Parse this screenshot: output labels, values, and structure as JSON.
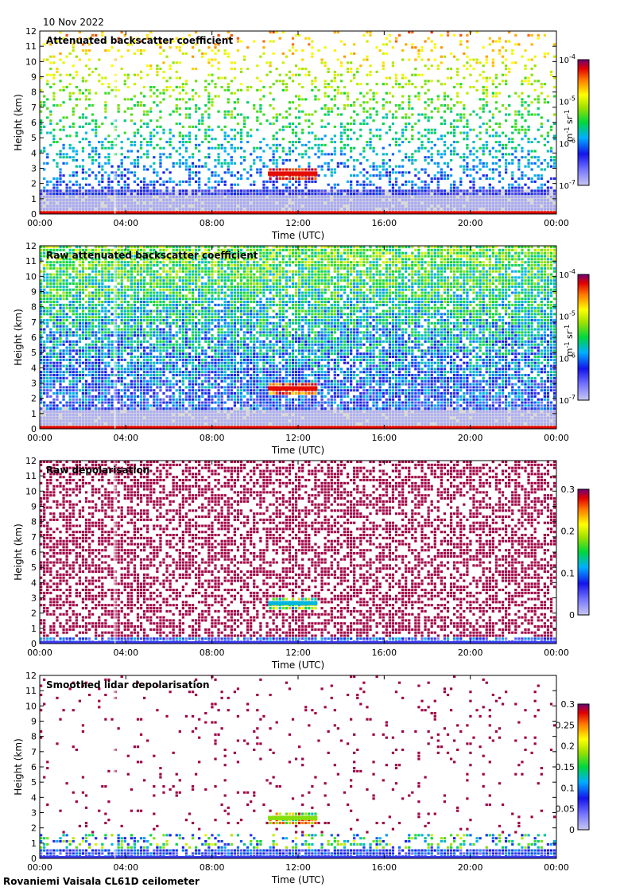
{
  "date": "10 Nov 2022",
  "footer": "Rovaniemi Vaisala CL61D ceilometer",
  "chart_data": [
    {
      "type": "heatmap",
      "title": "Attenuated backscatter coefficient",
      "xlabel": "Time (UTC)",
      "ylabel": "Height (km)",
      "xticks": [
        "00:00",
        "04:00",
        "08:00",
        "12:00",
        "16:00",
        "20:00",
        "00:00"
      ],
      "yticks": [
        "0",
        "1",
        "2",
        "3",
        "4",
        "5",
        "6",
        "7",
        "8",
        "9",
        "10",
        "11",
        "12"
      ],
      "ylim": [
        0,
        12
      ],
      "colorbar": {
        "label_parts": [
          "m",
          "-1",
          " sr",
          "-1"
        ],
        "scale": "log",
        "ticks": [
          {
            "base": "10",
            "exp": "-4",
            "value": 0.0001
          },
          {
            "base": "10",
            "exp": "-5",
            "value": 1e-05
          },
          {
            "base": "10",
            "exp": "-6",
            "value": 1e-06
          },
          {
            "base": "10",
            "exp": "-7",
            "value": 1e-07
          }
        ]
      },
      "features": {
        "cloud_layer_km": [
          2.2,
          3.0
        ],
        "cloud_time_h": [
          10.6,
          12.9
        ],
        "boundary_layer_top_km": 1.6,
        "white_gap_time_h": 3.5
      }
    },
    {
      "type": "heatmap",
      "title": "Raw attenuated backscatter coefficient",
      "xlabel": "Time (UTC)",
      "ylabel": "Height (km)",
      "xticks": [
        "00:00",
        "04:00",
        "08:00",
        "12:00",
        "16:00",
        "20:00",
        "00:00"
      ],
      "yticks": [
        "0",
        "1",
        "2",
        "3",
        "4",
        "5",
        "6",
        "7",
        "8",
        "9",
        "10",
        "11",
        "12"
      ],
      "ylim": [
        0,
        12
      ],
      "colorbar": {
        "label_parts": [
          "m",
          "-1",
          " sr",
          "-1"
        ],
        "scale": "log",
        "ticks": [
          {
            "base": "10",
            "exp": "-4",
            "value": 0.0001
          },
          {
            "base": "10",
            "exp": "-5",
            "value": 1e-05
          },
          {
            "base": "10",
            "exp": "-6",
            "value": 1e-06
          },
          {
            "base": "10",
            "exp": "-7",
            "value": 1e-07
          }
        ]
      },
      "features": {
        "cloud_layer_km": [
          2.2,
          3.0
        ],
        "cloud_time_h": [
          10.6,
          12.9
        ],
        "boundary_layer_top_km": 1.4,
        "white_gap_time_h": 3.5
      }
    },
    {
      "type": "heatmap",
      "title": "Raw depolarisation",
      "xlabel": "Time (UTC)",
      "ylabel": "Height (km)",
      "xticks": [
        "00:00",
        "04:00",
        "08:00",
        "12:00",
        "16:00",
        "20:00",
        "00:00"
      ],
      "yticks": [
        "0",
        "1",
        "2",
        "3",
        "4",
        "5",
        "6",
        "7",
        "8",
        "9",
        "10",
        "11",
        "12"
      ],
      "ylim": [
        0,
        12
      ],
      "colorbar": {
        "scale": "linear",
        "ticks": [
          "0.3",
          "0.2",
          "0.1",
          "0"
        ],
        "range": [
          0,
          0.3
        ]
      },
      "features": {
        "cloud_layer_km": [
          2.2,
          3.0
        ],
        "cloud_time_h": [
          10.6,
          12.9
        ],
        "white_gap_time_h": 3.5
      }
    },
    {
      "type": "heatmap",
      "title": "Smoothed lidar depolarisation",
      "xlabel": "Time (UTC)",
      "ylabel": "Height (km)",
      "xticks": [
        "00:00",
        "04:00",
        "08:00",
        "12:00",
        "16:00",
        "20:00",
        "00:00"
      ],
      "yticks": [
        "0",
        "1",
        "2",
        "3",
        "4",
        "5",
        "6",
        "7",
        "8",
        "9",
        "10",
        "11",
        "12"
      ],
      "ylim": [
        0,
        12
      ],
      "colorbar": {
        "scale": "linear",
        "ticks": [
          "0.3",
          "0.25",
          "0.2",
          "0.15",
          "0.1",
          "0.05",
          "0"
        ],
        "range": [
          0,
          0.3
        ]
      },
      "features": {
        "cloud_layer_km": [
          2.2,
          3.0
        ],
        "cloud_time_h": [
          10.6,
          12.9
        ],
        "boundary_layer_top_km": 1.6,
        "white_gap_time_h": 3.5
      }
    }
  ]
}
